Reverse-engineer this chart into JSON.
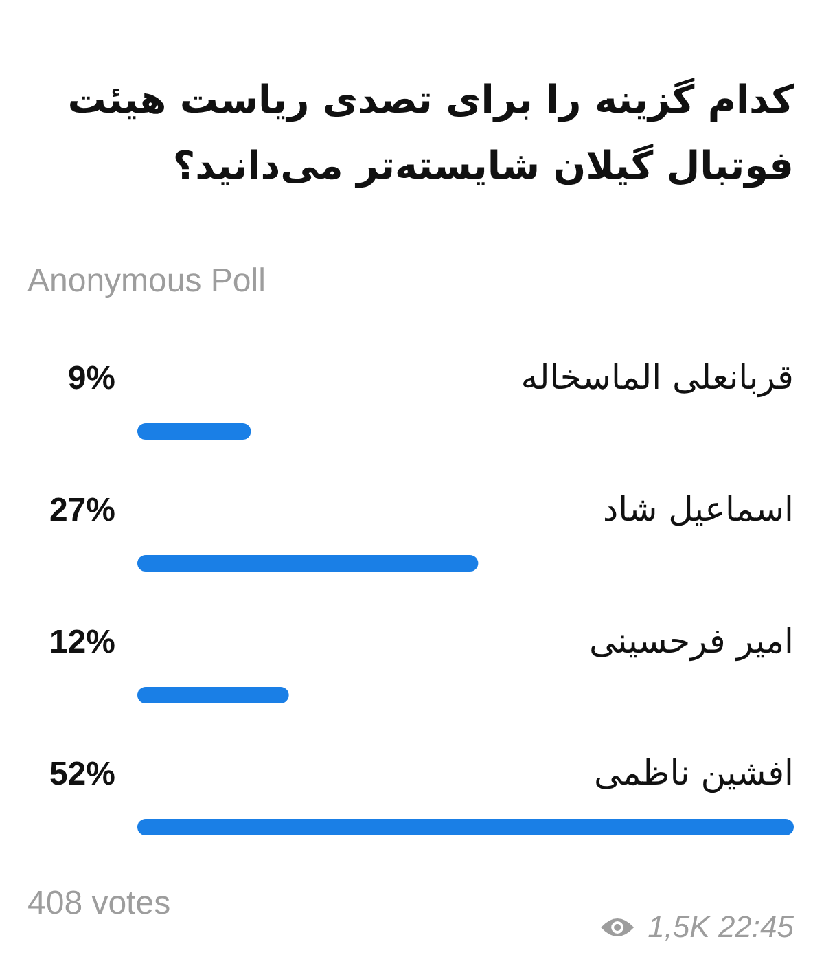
{
  "chart_data": {
    "type": "bar",
    "orientation": "horizontal",
    "title": "کدام گزینه را برای تصدی ریاست هیئت فوتبال گیلان شایسته‌تر می‌دانید؟",
    "subtitle": "Anonymous Poll",
    "categories": [
      "قربانعلی الماسخاله",
      "اسماعیل شاد",
      "امیر فرحسینی",
      "افشین ناظمی"
    ],
    "values": [
      9,
      27,
      12,
      52
    ],
    "value_labels": [
      "9%",
      "27%",
      "12%",
      "52%"
    ],
    "color": "#1a7fe6",
    "annotations": [
      "408 votes",
      "1,5K",
      "22:45"
    ]
  }
}
